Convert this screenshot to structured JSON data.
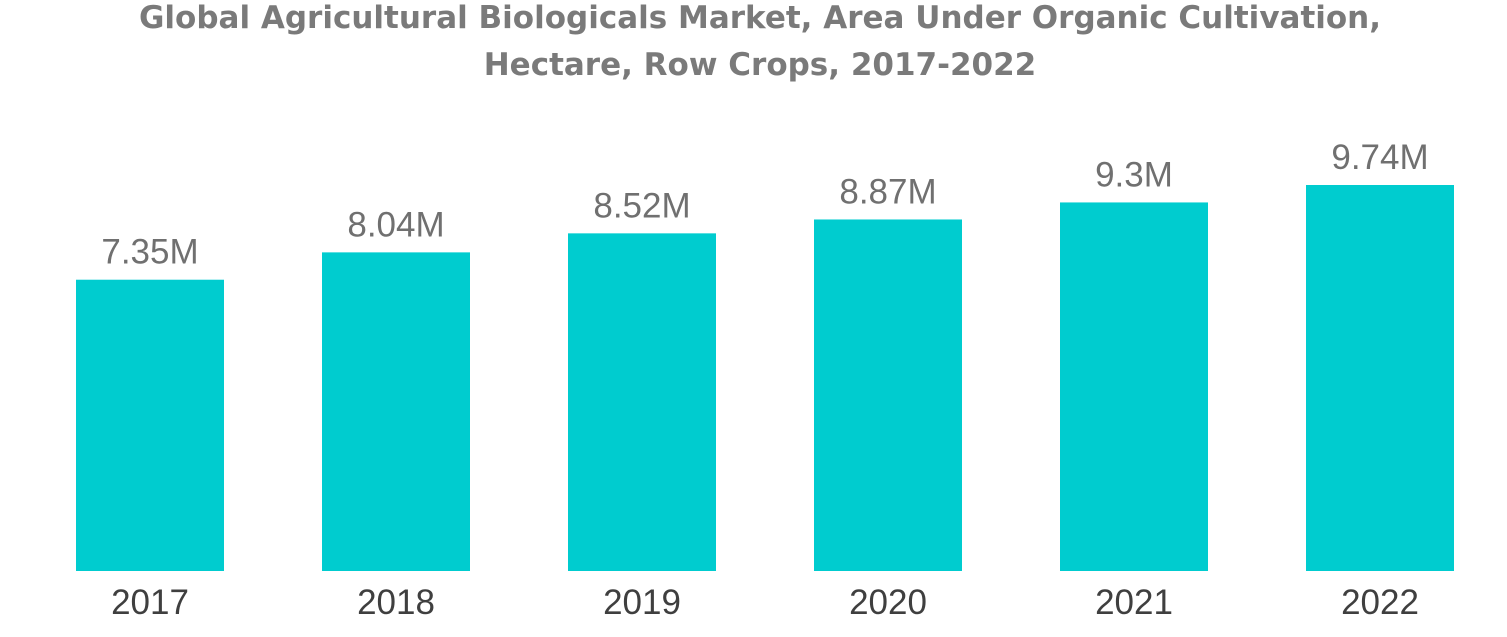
{
  "chart_data": {
    "type": "bar",
    "title_lines": [
      "Global Agricultural Biologicals Market, Area Under Organic Cultivation,",
      "Hectare, Row Crops, 2017-2022"
    ],
    "categories": [
      "2017",
      "2018",
      "2019",
      "2020",
      "2021",
      "2022"
    ],
    "values": [
      7.35,
      8.04,
      8.52,
      8.87,
      9.3,
      9.74
    ],
    "value_labels": [
      "7.35M",
      "8.04M",
      "8.52M",
      "8.87M",
      "9.3M",
      "9.74M"
    ],
    "unit": "M hectares",
    "xlabel": "",
    "ylabel": "",
    "ylim": [
      0,
      9.74
    ],
    "grid": false,
    "legend": "none",
    "bar_color": "#00cccf"
  }
}
